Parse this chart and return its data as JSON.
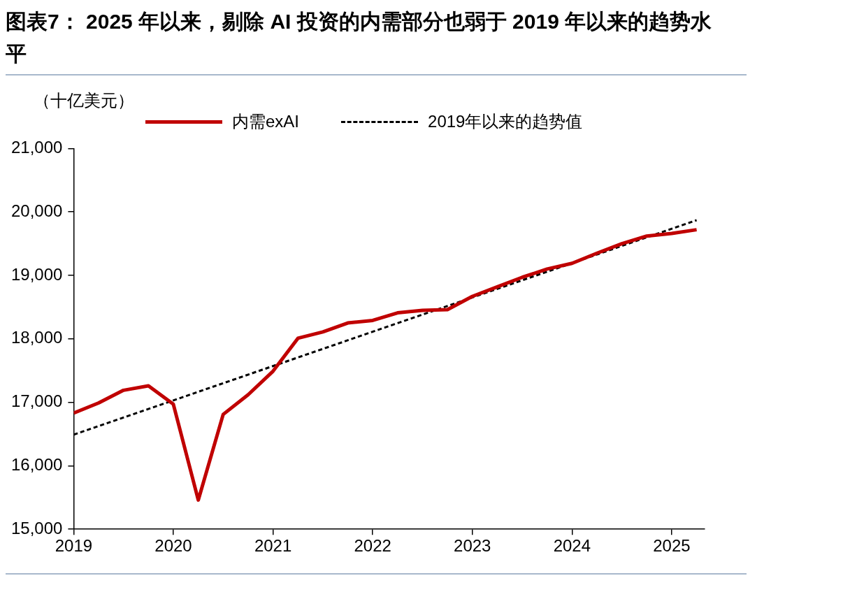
{
  "chart_data": {
    "type": "line",
    "title": "图表7： 2025 年以来，剔除 AI 投资的内需部分也弱于 2019 年以来的趋势水平",
    "ylabel": "（十亿美元）",
    "xlim": [
      2019,
      2025.33
    ],
    "xticks": [
      2019,
      2020,
      2021,
      2022,
      2023,
      2024,
      2025
    ],
    "ylim": [
      15000,
      21000
    ],
    "yticks": [
      {
        "value": 15000,
        "label": "15,000"
      },
      {
        "value": 16000,
        "label": "16,000"
      },
      {
        "value": 17000,
        "label": "17,000"
      },
      {
        "value": 18000,
        "label": "18,000"
      },
      {
        "value": 19000,
        "label": "19,000"
      },
      {
        "value": 20000,
        "label": "20,000"
      },
      {
        "value": 21000,
        "label": "21,000"
      }
    ],
    "legend": "top",
    "series": [
      {
        "name": "内需exAI",
        "color": "#c00000",
        "line_style": "solid",
        "x": [
          2019,
          2019.25,
          2019.5,
          2019.75,
          2020,
          2020.25,
          2020.5,
          2020.75,
          2021,
          2021.25,
          2021.5,
          2021.75,
          2022,
          2022.25,
          2022.5,
          2022.75,
          2023,
          2023.25,
          2023.5,
          2023.75,
          2024,
          2024.25,
          2024.5,
          2024.75,
          2025,
          2025.25
        ],
        "values": [
          16830,
          16990,
          17190,
          17260,
          16970,
          15460,
          16810,
          17120,
          17490,
          18010,
          18110,
          18250,
          18290,
          18410,
          18450,
          18460,
          18670,
          18820,
          18970,
          19100,
          19190,
          19350,
          19500,
          19620,
          19660,
          19720
        ]
      },
      {
        "name": "2019年以来的趋势值",
        "color": "#000000",
        "line_style": "dashed",
        "x": [
          2019,
          2025.25
        ],
        "values": [
          16490,
          19870
        ]
      }
    ]
  }
}
